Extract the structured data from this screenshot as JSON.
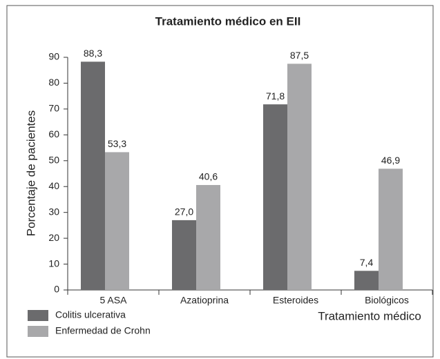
{
  "chart_data": {
    "type": "bar",
    "title": "Tratamiento médico en EII",
    "x_label": "Tratamiento médico",
    "y_label": "Porcentaje de pacientes",
    "categories": [
      "5 ASA",
      "Azatioprina",
      "Esteroides",
      "Biológicos"
    ],
    "series": [
      {
        "name": "Colitis ulcerativa",
        "color": "#6b6b6d",
        "values": [
          88.3,
          27.0,
          71.8,
          7.4
        ],
        "value_labels": [
          "88,3",
          "27,0",
          "71,8",
          "7,4"
        ]
      },
      {
        "name": "Enfermedad de Crohn",
        "color": "#a8a8aa",
        "values": [
          53.3,
          40.6,
          87.5,
          46.9
        ],
        "value_labels": [
          "53,3",
          "40,6",
          "87,5",
          "46,9"
        ]
      }
    ],
    "ylim": [
      0,
      90
    ],
    "yticks": [
      0,
      10,
      20,
      30,
      40,
      50,
      60,
      70,
      80,
      90
    ],
    "grid": false
  }
}
